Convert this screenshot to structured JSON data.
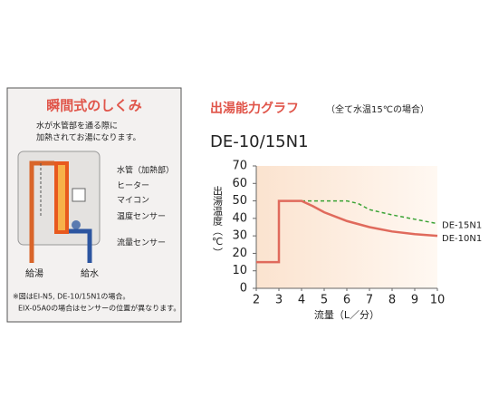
{
  "panel": {
    "title": "瞬間式のしくみ",
    "description": [
      "水が水管部を通る際に",
      "加熱されてお湯になります。"
    ],
    "labels": [
      "水管（加熱部）",
      "ヒーター",
      "マイコン",
      "温度センサー",
      "流量センサー"
    ],
    "outlets": [
      "給湯",
      "給水"
    ],
    "notes": [
      "※図はEI-N5, DE-10/15N1の場合。",
      "EIX-05A0の場合はセンサーの位置が異なります。"
    ]
  },
  "chart_data": {
    "type": "line",
    "title": "出湯能力グラフ",
    "subtitle": "（全て水温15℃の場合）",
    "model": "DE-10/15N1",
    "xlabel": "流量（L／分）",
    "ylabel": "出湯温度（℃）",
    "xlim": [
      2,
      10
    ],
    "xticks": [
      2,
      3,
      4,
      5,
      6,
      7,
      8,
      9,
      10
    ],
    "ylim": [
      0,
      70
    ],
    "yticks": [
      0,
      10,
      20,
      30,
      40,
      50,
      60,
      70
    ],
    "series": [
      {
        "name": "DE-15N1",
        "color": "#3aa335",
        "dashed": true,
        "x": [
          4,
          5,
          6,
          6.5,
          7,
          8,
          9,
          10
        ],
        "values": [
          50,
          50,
          50,
          48.5,
          45,
          42,
          39.5,
          37
        ]
      },
      {
        "name": "DE-10N1",
        "color": "#e06a5c",
        "dashed": false,
        "x": [
          2,
          3,
          3,
          4,
          4.5,
          5,
          6,
          7,
          8,
          9,
          10
        ],
        "values": [
          15,
          15,
          50,
          50,
          47,
          43.5,
          38.5,
          35,
          32.5,
          31,
          30
        ]
      }
    ]
  }
}
